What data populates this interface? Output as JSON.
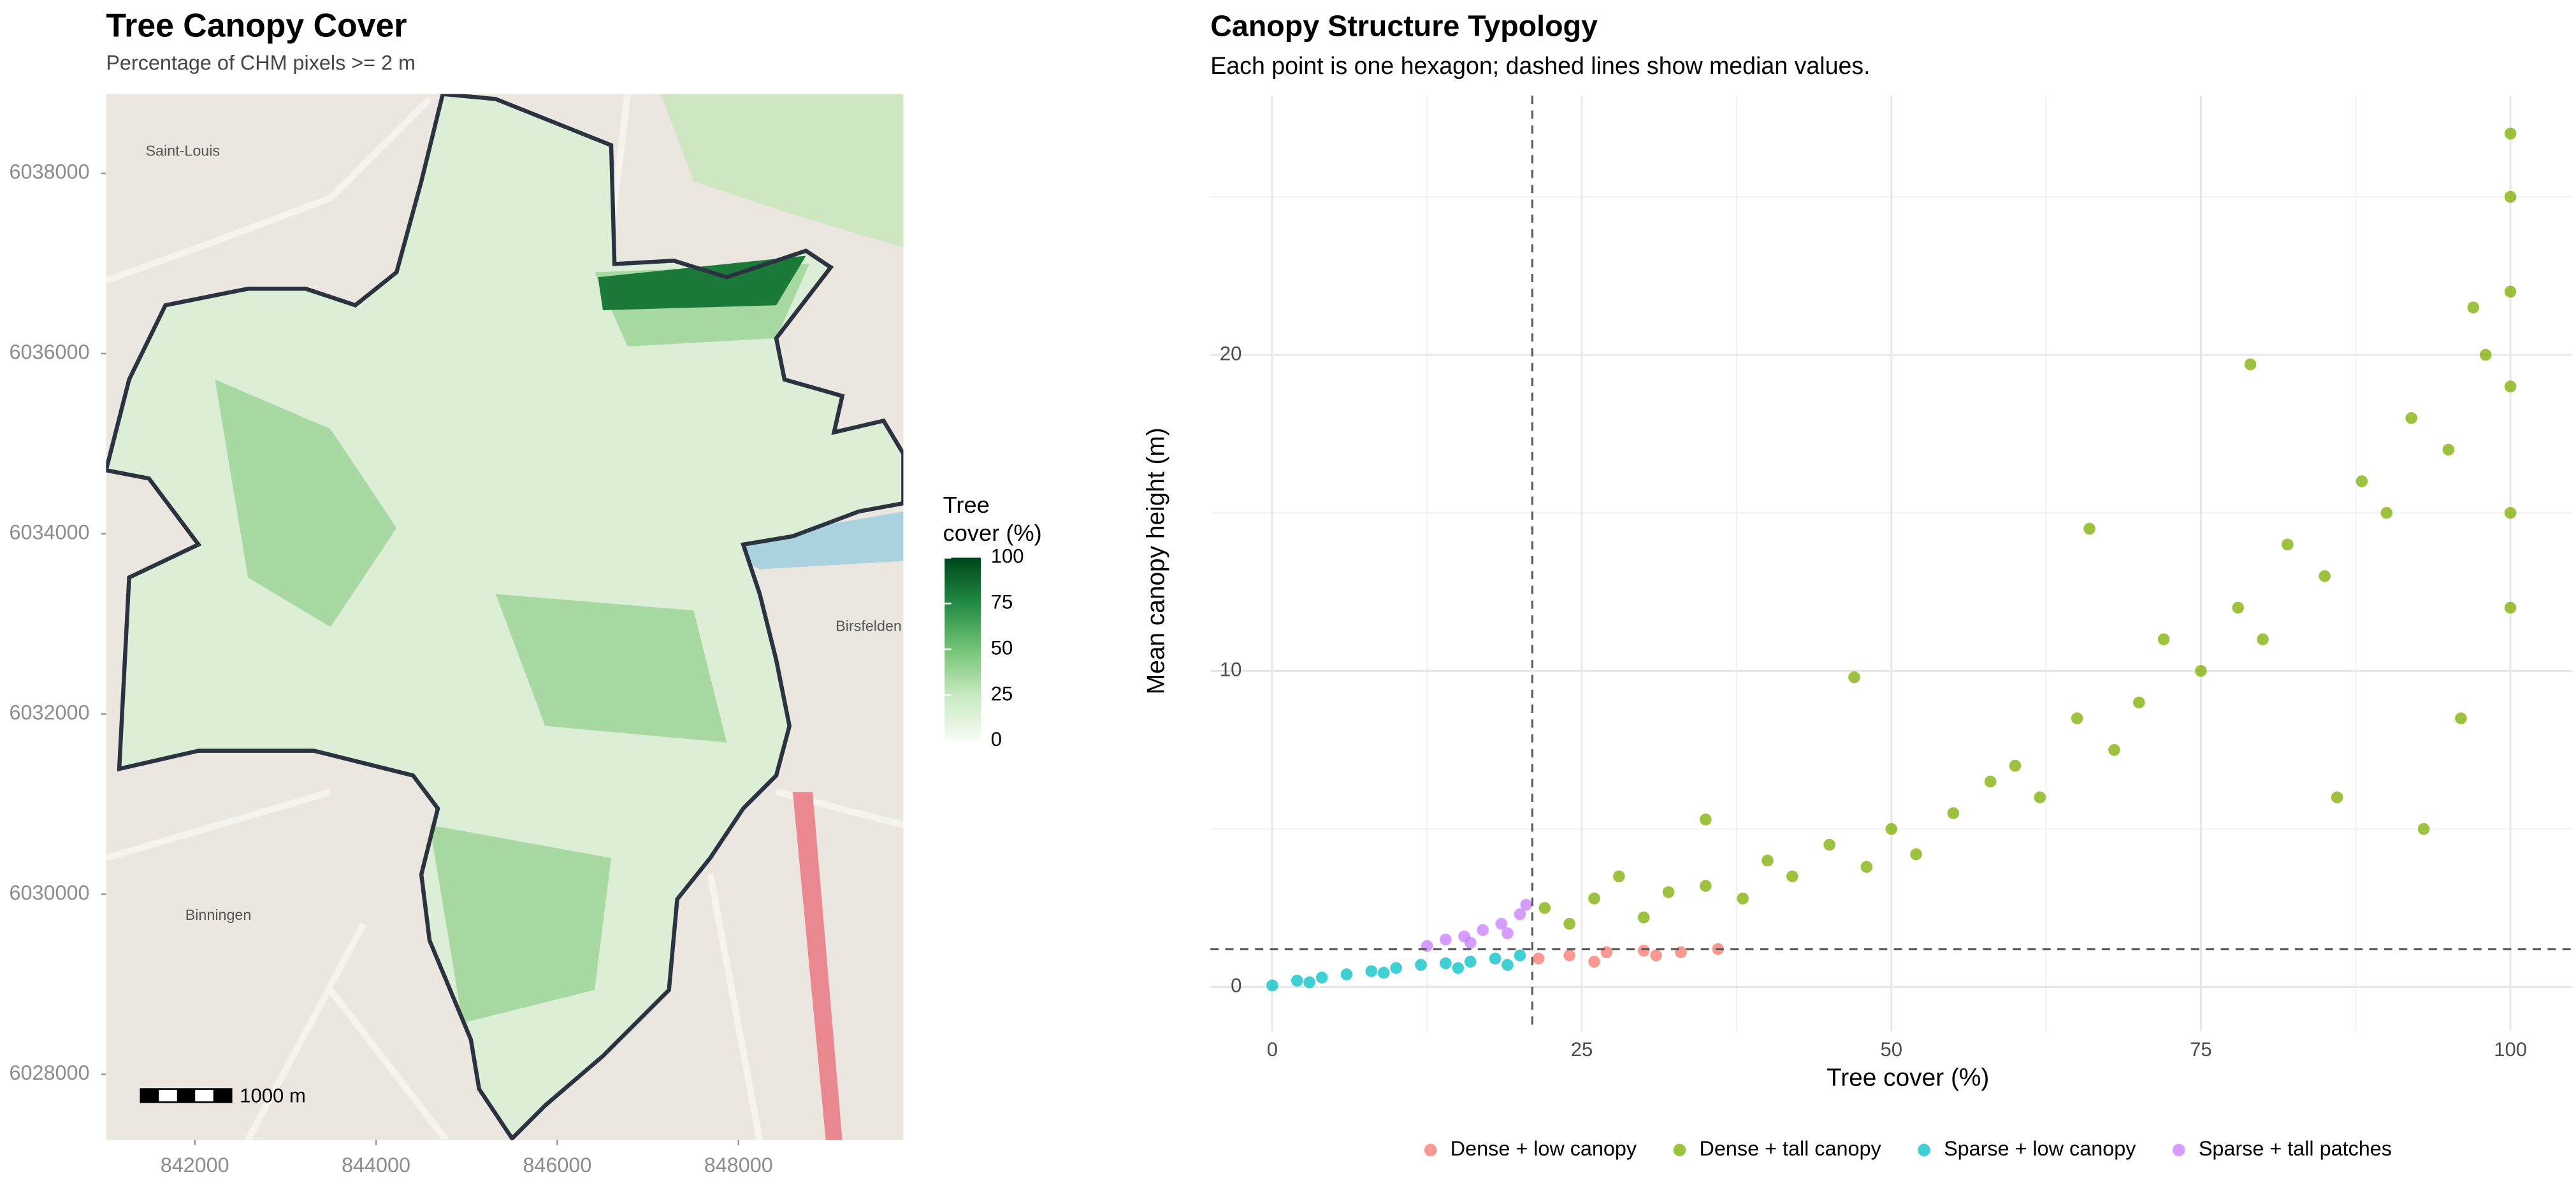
{
  "chart_data": [
    {
      "type": "map",
      "title": "Tree Canopy Cover",
      "subtitle": "Percentage of CHM pixels >= 2 m",
      "xlim": [
        841020,
        849820
      ],
      "ylim": [
        6027270,
        6038880
      ],
      "xticks": [
        842000,
        844000,
        846000,
        848000
      ],
      "yticks": [
        6028000,
        6030000,
        6032000,
        6034000,
        6036000,
        6038000
      ],
      "legend_title": [
        "Tree",
        "cover (%)"
      ],
      "colorbar_lim": [
        0,
        100
      ],
      "colorbar_ticks": [
        0,
        25,
        50,
        75,
        100
      ],
      "colors": [
        "#f7fcf5",
        "#c7e9c0",
        "#74c476",
        "#238b45",
        "#00441b"
      ],
      "map_labels": [
        "Saint-Louis",
        "Binningen",
        "Birsfelden"
      ],
      "scale_bar": "1000 m"
    },
    {
      "type": "scatter",
      "title": "Canopy Structure Typology",
      "subtitle": "Each point is one hexagon; dashed lines show median values.",
      "x_label": "Tree cover (%)",
      "y_label": "Mean canopy height (m)",
      "xlim": [
        -5,
        105
      ],
      "ylim": [
        -1.4,
        28.2
      ],
      "xticks": [
        0,
        25,
        50,
        75,
        100
      ],
      "yticks": [
        0,
        10,
        20
      ],
      "x_minor_ticks": [
        12.5,
        37.5,
        62.5,
        87.5
      ],
      "y_minor_ticks": [
        5,
        15,
        25
      ],
      "grid": true,
      "median_x": 21,
      "median_y": 1.2,
      "legend": "bottom",
      "series": [
        {
          "name": "Dense + low canopy",
          "color": "#F8766D",
          "x": [
            21.5,
            24,
            27,
            30,
            33,
            36,
            26,
            31
          ],
          "values": [
            0.9,
            1,
            1.1,
            1.15,
            1.1,
            1.2,
            0.8,
            1.0
          ]
        },
        {
          "name": "Dense + tall canopy",
          "color": "#7CAE00",
          "x": [
            22,
            24,
            26,
            28,
            30,
            32,
            35,
            38,
            40,
            42,
            45,
            48,
            50,
            52,
            55,
            58,
            60,
            62,
            65,
            68,
            70,
            72,
            75,
            78,
            80,
            82,
            85,
            88,
            90,
            92,
            95,
            98,
            100,
            100,
            100,
            100,
            100,
            100,
            97,
            93,
            96,
            79,
            47,
            35,
            86,
            66
          ],
          "values": [
            2.5,
            2,
            2.8,
            3.5,
            2.2,
            3,
            3.2,
            2.8,
            4,
            3.5,
            4.5,
            3.8,
            5,
            4.2,
            5.5,
            6.5,
            7,
            6,
            8.5,
            7.5,
            9,
            11,
            10,
            12,
            11,
            14,
            13,
            16,
            15,
            18,
            17,
            20,
            19,
            22,
            25,
            15,
            12,
            27,
            21.5,
            5,
            8.5,
            19.7,
            9.8,
            5.3,
            6,
            14.5
          ]
        },
        {
          "name": "Sparse + low canopy",
          "color": "#00BFC4",
          "x": [
            0,
            2,
            4,
            6,
            8,
            10,
            12,
            14,
            16,
            18,
            20,
            3,
            9,
            15,
            19
          ],
          "values": [
            0.05,
            0.2,
            0.3,
            0.4,
            0.5,
            0.6,
            0.7,
            0.75,
            0.8,
            0.9,
            1.0,
            0.15,
            0.45,
            0.6,
            0.7
          ]
        },
        {
          "name": "Sparse + tall patches",
          "color": "#C77CFF",
          "x": [
            12.5,
            14,
            15.5,
            17,
            18.5,
            20,
            20.5,
            16,
            19
          ],
          "values": [
            1.3,
            1.5,
            1.6,
            1.8,
            2,
            2.3,
            2.6,
            1.4,
            1.7
          ]
        }
      ]
    }
  ]
}
